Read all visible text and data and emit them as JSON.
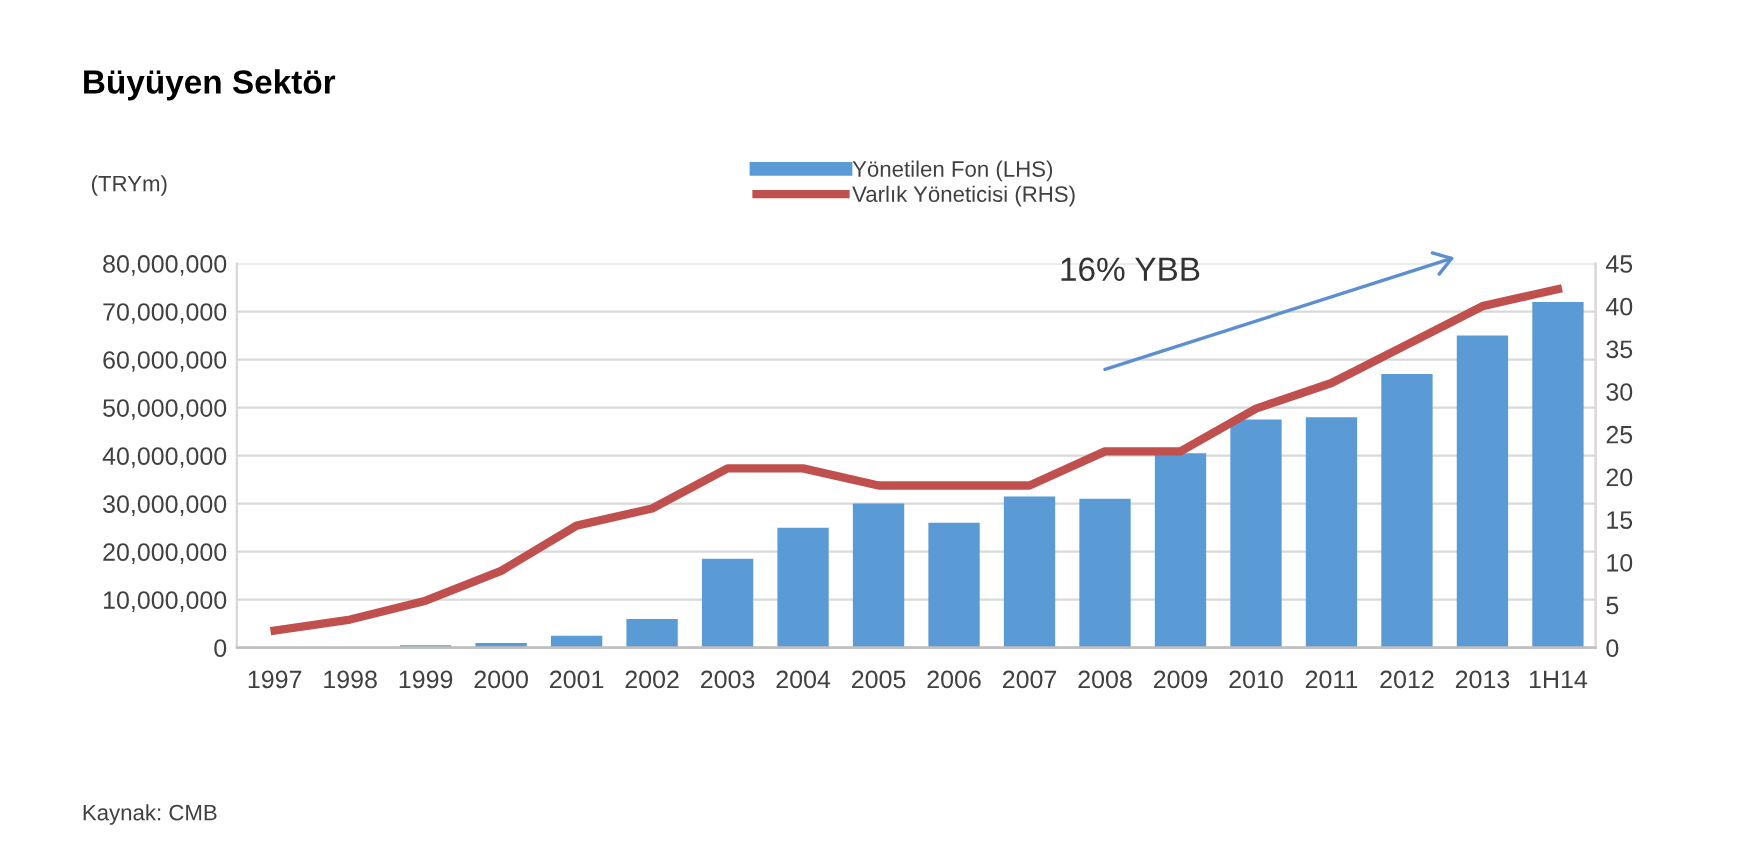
{
  "chart_data": {
    "type": "bar",
    "title": "Büyüyen Sektör",
    "ylabel": "(TRYm)",
    "categories": [
      "1997",
      "1998",
      "1999",
      "2000",
      "2001",
      "2002",
      "2003",
      "2004",
      "2005",
      "2006",
      "2007",
      "2008",
      "2009",
      "2010",
      "2011",
      "2012",
      "2013",
      "1H14"
    ],
    "series": [
      {
        "name": "Yönetilen Fon (LHS)",
        "color": "#5b9bd5",
        "values": [
          null,
          null,
          500000,
          1000000,
          2500000,
          6000000,
          18500000,
          25000000,
          30000000,
          26000000,
          31500000,
          31000000,
          40500000,
          47500000,
          48000000,
          57000000,
          65000000,
          72000000
        ]
      },
      {
        "name": "Varlık Yöneticisi (RHS)",
        "type": "line",
        "axis": "y2",
        "color": "#c0504d",
        "values": [
          2,
          3.3,
          5.5,
          9,
          14.3,
          16.3,
          21,
          21,
          19,
          19,
          19,
          23,
          23,
          28,
          31,
          35.5,
          40,
          42
        ]
      }
    ],
    "ylim": [
      0,
      80000000
    ],
    "yticks": [
      {
        "value": 0,
        "label": "0"
      },
      {
        "value": 10000000,
        "label": "10,000,000"
      },
      {
        "value": 20000000,
        "label": "20,000,000"
      },
      {
        "value": 30000000,
        "label": "30,000,000"
      },
      {
        "value": 40000000,
        "label": "40,000,000"
      },
      {
        "value": 50000000,
        "label": "50,000,000"
      },
      {
        "value": 60000000,
        "label": "60,000,000"
      },
      {
        "value": 70000000,
        "label": "70,000,000"
      },
      {
        "value": 80000000,
        "label": "80,000,000"
      }
    ],
    "y2lim": [
      0,
      45
    ],
    "y2ticks": [
      0,
      5,
      10,
      15,
      20,
      25,
      30,
      35,
      40,
      45
    ],
    "grid": "y",
    "legend": "top",
    "line_style": "solid",
    "marker": "none",
    "annotations": [
      "16% YBB",
      "Kaynak: CMB"
    ]
  }
}
